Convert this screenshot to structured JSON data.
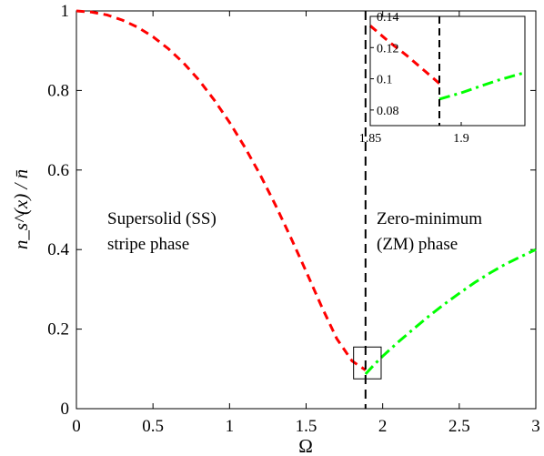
{
  "chart_data": [
    {
      "type": "line",
      "xlabel": "Ω",
      "ylabel": "n_s^(x) / n̄",
      "xlim": [
        0,
        3
      ],
      "ylim": [
        0,
        1
      ],
      "xticks": [
        "0",
        "0.5",
        "1",
        "1.5",
        "2",
        "2.5",
        "3"
      ],
      "yticks": [
        "0",
        "0.2",
        "0.4",
        "0.6",
        "0.8",
        "1"
      ],
      "grid": false,
      "legend": "none",
      "annotations": [
        {
          "id": "ss",
          "lines": [
            "Supersolid (SS)",
            "stripe phase"
          ]
        },
        {
          "id": "zm",
          "lines": [
            "Zero-minimum",
            "(ZM) phase"
          ]
        }
      ],
      "transition_x": 1.888,
      "zoom_box": {
        "x": [
          1.81,
          1.99
        ],
        "y": [
          0.075,
          0.155
        ]
      },
      "series": [
        {
          "color": "#ff0000",
          "style": "dashed",
          "x": [
            0,
            0.1,
            0.2,
            0.3,
            0.4,
            0.5,
            0.6,
            0.7,
            0.8,
            0.9,
            1.0,
            1.1,
            1.2,
            1.3,
            1.4,
            1.5,
            1.6,
            1.7,
            1.8,
            1.888
          ],
          "y": [
            1.0,
            0.997,
            0.99,
            0.977,
            0.959,
            0.935,
            0.905,
            0.869,
            0.826,
            0.776,
            0.72,
            0.657,
            0.588,
            0.512,
            0.43,
            0.345,
            0.258,
            0.176,
            0.12,
            0.097
          ]
        },
        {
          "color": "#00ff00",
          "style": "dashdot",
          "x": [
            1.888,
            1.95,
            2.0,
            2.1,
            2.2,
            2.3,
            2.4,
            2.5,
            2.6,
            2.7,
            2.8,
            2.9,
            3.0
          ],
          "y": [
            0.087,
            0.113,
            0.132,
            0.167,
            0.2,
            0.232,
            0.262,
            0.29,
            0.317,
            0.341,
            0.363,
            0.382,
            0.4
          ]
        }
      ]
    },
    {
      "type": "line",
      "role": "inset",
      "xlim": [
        1.85,
        1.935
      ],
      "ylim": [
        0.07,
        0.14
      ],
      "xticks": [
        "1.85",
        "1.9"
      ],
      "yticks": [
        "0.08",
        "0.1",
        "0.12",
        "0.14"
      ],
      "transition_x": 1.888,
      "series": [
        {
          "color": "#ff0000",
          "style": "dashed",
          "x": [
            1.85,
            1.86,
            1.87,
            1.88,
            1.888
          ],
          "y": [
            0.134,
            0.124,
            0.115,
            0.105,
            0.097
          ]
        },
        {
          "color": "#00ff00",
          "style": "dashdot",
          "x": [
            1.888,
            1.9,
            1.91,
            1.92,
            1.935
          ],
          "y": [
            0.087,
            0.091,
            0.095,
            0.099,
            0.104
          ]
        }
      ]
    }
  ]
}
